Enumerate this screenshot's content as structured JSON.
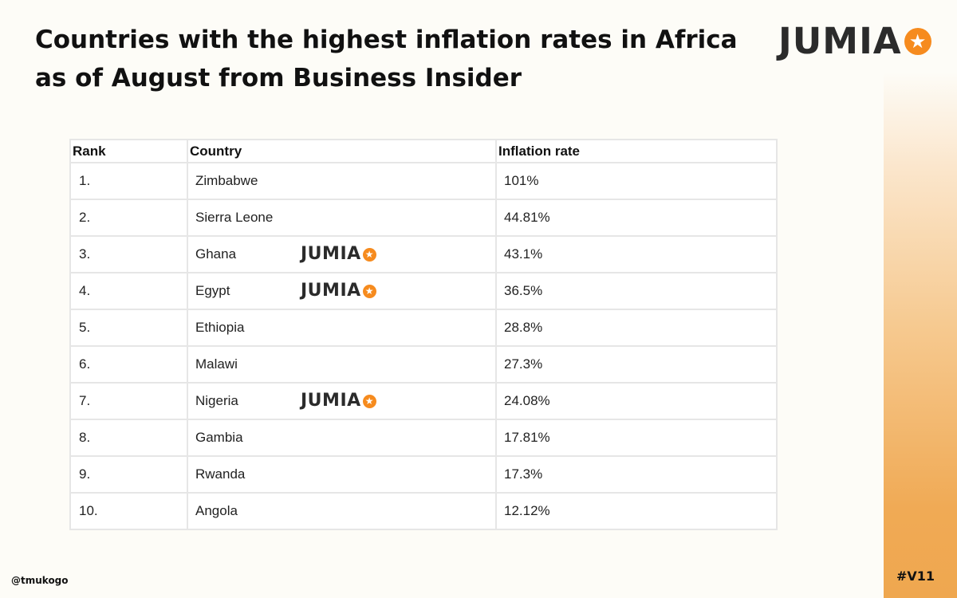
{
  "title": "Countries with the highest inflation rates in Africa as of August from Business Insider",
  "logo": {
    "wordmark": "JUMIA",
    "icon": "star-icon",
    "accent_color": "#f68b1e",
    "text_color": "#2b2b2b"
  },
  "table": {
    "headers": {
      "rank": "Rank",
      "country": "Country",
      "rate": "Inflation rate"
    },
    "rows": [
      {
        "rank": "1.",
        "country": "Zimbabwe",
        "rate": "101%",
        "jumia": false
      },
      {
        "rank": "2.",
        "country": "Sierra Leone",
        "rate": "44.81%",
        "jumia": false
      },
      {
        "rank": "3.",
        "country": "Ghana",
        "rate": "43.1%",
        "jumia": true
      },
      {
        "rank": "4.",
        "country": "Egypt",
        "rate": "36.5%",
        "jumia": true
      },
      {
        "rank": "5.",
        "country": "Ethiopia",
        "rate": "28.8%",
        "jumia": false
      },
      {
        "rank": "6.",
        "country": "Malawi",
        "rate": "27.3%",
        "jumia": false
      },
      {
        "rank": "7.",
        "country": "Nigeria",
        "rate": "24.08%",
        "jumia": true
      },
      {
        "rank": "8.",
        "country": "Gambia",
        "rate": "17.81%",
        "jumia": false
      },
      {
        "rank": "9.",
        "country": "Rwanda",
        "rate": "17.3%",
        "jumia": false
      },
      {
        "rank": "10.",
        "country": "Angola",
        "rate": "12.12%",
        "jumia": false
      }
    ]
  },
  "footer": {
    "handle": "@tmukogo",
    "tag": "#V11"
  },
  "colors": {
    "accent_orange": "#efa74f",
    "background": "#fdfcf7",
    "grid_line": "#e6e6e6"
  }
}
